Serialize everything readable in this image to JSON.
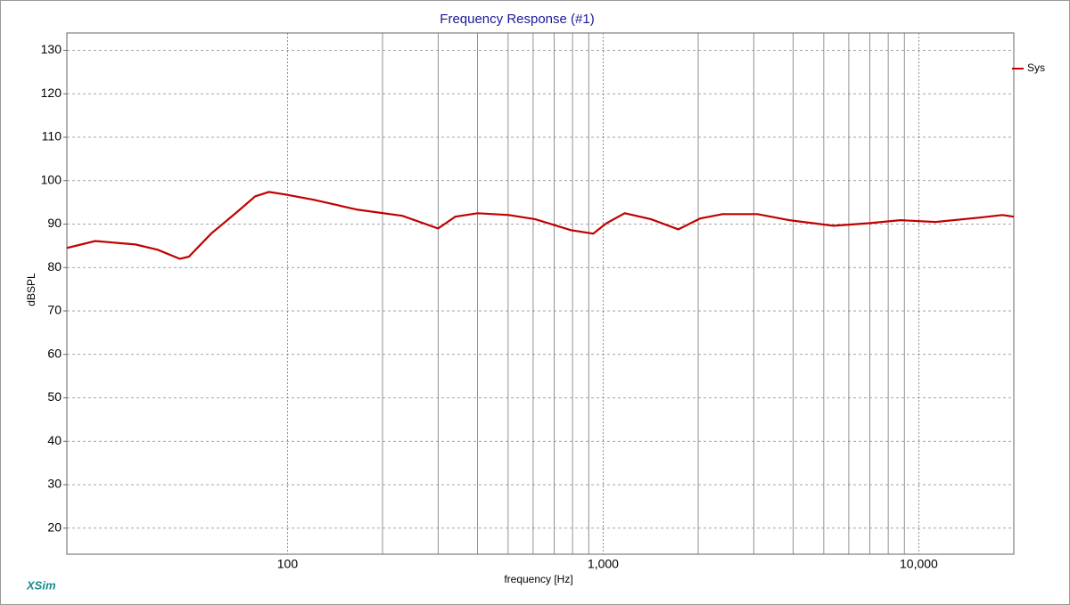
{
  "chart_data": {
    "type": "line",
    "title": "Frequency Response (#1)",
    "x_label": "frequency [Hz]",
    "y_label": "dBSPL",
    "brand": "XSim",
    "log_x": true,
    "grid": true,
    "legend": "top-right",
    "xlim": [
      20,
      20000
    ],
    "xticks": [
      {
        "value": 100,
        "label": "100"
      },
      {
        "value": 1000,
        "label": "1,000"
      },
      {
        "value": 10000,
        "label": "10,000"
      }
    ],
    "x_minor_gridlines": [
      200,
      300,
      400,
      500,
      600,
      700,
      800,
      900,
      2000,
      3000,
      4000,
      5000,
      6000,
      7000,
      8000,
      9000
    ],
    "ylim": [
      14,
      134
    ],
    "yticks": [
      20,
      30,
      40,
      50,
      60,
      70,
      80,
      90,
      100,
      110,
      120,
      130
    ],
    "x": [
      20,
      24.6,
      33,
      38.8,
      45.6,
      48.7,
      57.3,
      69.5,
      79,
      87.3,
      99,
      121,
      167,
      231,
      300,
      340,
      400,
      502,
      610,
      790,
      930,
      1025,
      1170,
      1420,
      1730,
      2030,
      2390,
      3080,
      3880,
      5370,
      6960,
      8730,
      11300,
      15600,
      18400,
      20000
    ],
    "series": [
      {
        "name": "Sys",
        "color": "#c00000",
        "values": [
          84.5,
          86.1,
          85.3,
          84.1,
          82.0,
          82.5,
          87.8,
          92.9,
          96.4,
          97.4,
          96.8,
          95.6,
          93.3,
          91.9,
          89.0,
          91.7,
          92.5,
          92.1,
          91.1,
          88.6,
          87.8,
          90.2,
          92.5,
          91.1,
          88.8,
          91.3,
          92.3,
          92.3,
          90.9,
          89.6,
          90.2,
          90.9,
          90.5,
          91.5,
          92.1,
          91.7
        ]
      }
    ]
  }
}
